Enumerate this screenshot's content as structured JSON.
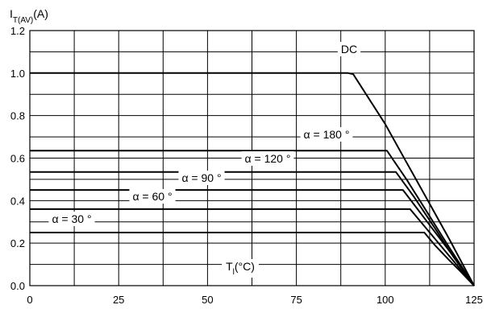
{
  "chart_data": {
    "type": "line",
    "ylabel_main": "I",
    "ylabel_sub": "T(AV)",
    "ylabel_unit": "(A)",
    "xlabel_main": "T",
    "xlabel_sub": "l",
    "xlabel_unit": "(°C)",
    "xlim": [
      0,
      125
    ],
    "ylim": [
      0,
      1.2
    ],
    "x_ticks": [
      "0",
      "25",
      "50",
      "75",
      "100",
      "125"
    ],
    "y_ticks": [
      "0.0",
      "0.2",
      "0.4",
      "0.6",
      "0.8",
      "1.0",
      "1.2"
    ],
    "grid": true,
    "series": [
      {
        "name": "DC",
        "points": [
          [
            0,
            1.0
          ],
          [
            89.5,
            1.0
          ],
          [
            91,
            0.995
          ],
          [
            100,
            0.76
          ],
          [
            106,
            0.58
          ],
          [
            112,
            0.4
          ],
          [
            118,
            0.22
          ],
          [
            125,
            0.0
          ]
        ]
      },
      {
        "name": "α = 180 °",
        "points": [
          [
            0,
            0.635
          ],
          [
            100.5,
            0.635
          ],
          [
            106,
            0.5
          ],
          [
            112,
            0.34
          ],
          [
            118,
            0.18
          ],
          [
            125,
            0.0
          ]
        ]
      },
      {
        "name": "α = 120 °",
        "points": [
          [
            0,
            0.535
          ],
          [
            103,
            0.535
          ],
          [
            108,
            0.42
          ],
          [
            114,
            0.27
          ],
          [
            119,
            0.14
          ],
          [
            125,
            0.0
          ]
        ]
      },
      {
        "name": "α = 90 °",
        "points": [
          [
            0,
            0.45
          ],
          [
            105,
            0.45
          ],
          [
            110,
            0.34
          ],
          [
            115,
            0.23
          ],
          [
            120,
            0.12
          ],
          [
            125,
            0.0
          ]
        ]
      },
      {
        "name": "α = 60 °",
        "points": [
          [
            0,
            0.36
          ],
          [
            107,
            0.36
          ],
          [
            111,
            0.28
          ],
          [
            116,
            0.18
          ],
          [
            120,
            0.1
          ],
          [
            125,
            0.0
          ]
        ]
      },
      {
        "name": "α = 30 °",
        "points": [
          [
            0,
            0.25
          ],
          [
            111,
            0.25
          ],
          [
            114,
            0.19
          ],
          [
            118,
            0.12
          ],
          [
            121,
            0.07
          ],
          [
            125,
            0.0
          ]
        ]
      }
    ]
  }
}
